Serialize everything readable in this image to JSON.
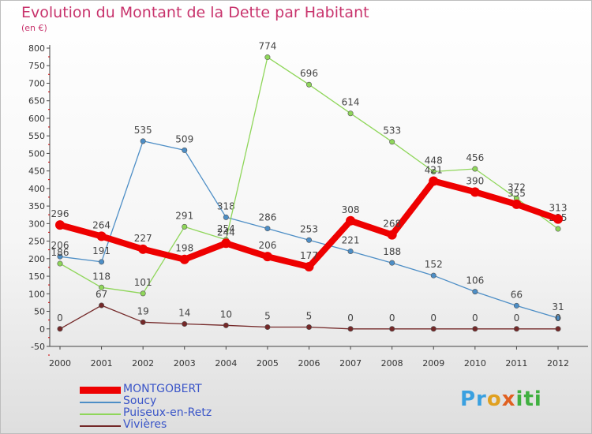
{
  "header": {
    "title": "Evolution du Montant de la Dette par Habitant",
    "subtitle": "(en €)"
  },
  "logo": {
    "text": "Proxiti"
  },
  "chart_data": {
    "type": "line",
    "title": "Evolution du Montant de la Dette par Habitant",
    "ylabel": "(en €)",
    "x": [
      "2000",
      "2001",
      "2002",
      "2003",
      "2004",
      "2005",
      "2006",
      "2007",
      "2008",
      "2009",
      "2010",
      "2011",
      "2012"
    ],
    "ylim": [
      -50,
      800
    ],
    "yticks": [
      -50,
      0,
      50,
      100,
      150,
      200,
      250,
      300,
      350,
      400,
      450,
      500,
      550,
      600,
      650,
      700,
      750,
      800
    ],
    "legend_position": "bottom-left",
    "grid": false,
    "series": [
      {
        "name": "MONTGOBERT",
        "color": "#ee0000",
        "width": 8,
        "values": [
          296,
          264,
          227,
          198,
          244,
          206,
          177,
          308,
          268,
          421,
          390,
          355,
          313
        ]
      },
      {
        "name": "Soucy",
        "color": "#4d8ec6",
        "width": 1.3,
        "values": [
          206,
          191,
          535,
          509,
          318,
          286,
          253,
          221,
          188,
          152,
          106,
          66,
          31
        ]
      },
      {
        "name": "Puiseux-en-Retz",
        "color": "#8fd65a",
        "width": 1.3,
        "values": [
          186,
          118,
          101,
          291,
          254,
          774,
          696,
          614,
          533,
          448,
          456,
          372,
          285
        ]
      },
      {
        "name": "Vivières",
        "color": "#742828",
        "width": 1.3,
        "values": [
          0,
          67,
          19,
          14,
          10,
          5,
          5,
          0,
          0,
          0,
          0,
          0,
          0
        ]
      }
    ]
  }
}
